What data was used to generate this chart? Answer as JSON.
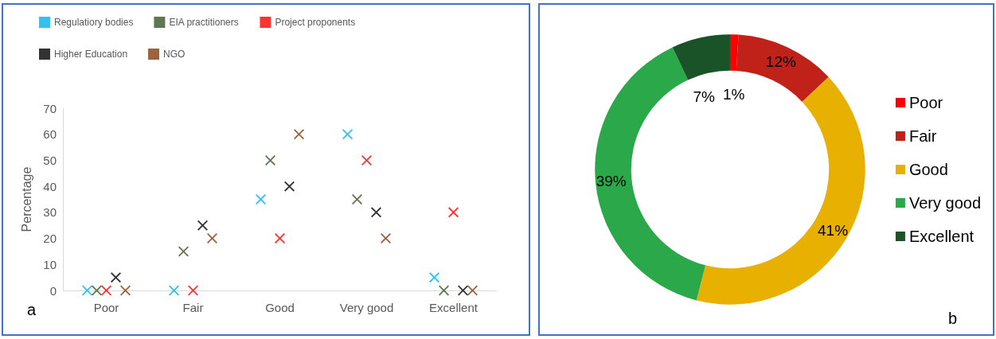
{
  "chart_data": [
    {
      "type": "scatter",
      "ylabel": "Percentage",
      "categories": [
        "Poor",
        "Fair",
        "Good",
        "Very good",
        "Excellent"
      ],
      "ylim": [
        0,
        70
      ],
      "yticks": [
        0,
        10,
        20,
        30,
        40,
        50,
        60,
        70
      ],
      "grid": false,
      "legend": "top",
      "marker": "cross",
      "annotations": [
        "a"
      ],
      "series": [
        {
          "name": "Regulatiory bodies",
          "color": "#00b0f0",
          "values": [
            0,
            0,
            35,
            60,
            5
          ]
        },
        {
          "name": "EIA practitioners",
          "color": "#375623",
          "values": [
            0,
            15,
            50,
            35,
            0
          ]
        },
        {
          "name": "Project proponents",
          "color": "#ff0000",
          "values": [
            0,
            0,
            20,
            50,
            30
          ]
        },
        {
          "name": "Higher Education",
          "color": "#000000",
          "values": [
            5,
            25,
            40,
            30,
            0
          ]
        },
        {
          "name": "NGO",
          "color": "#843c0c",
          "values": [
            0,
            20,
            60,
            20,
            0
          ]
        }
      ]
    },
    {
      "type": "donut",
      "categories": [
        "Poor",
        "Fair",
        "Good",
        "Very good",
        "Excellent"
      ],
      "values": [
        1,
        12,
        41,
        39,
        7
      ],
      "colors": [
        "#ff0000",
        "#c0221a",
        "#e8b000",
        "#2ba84a",
        "#1b5329"
      ],
      "value_labels": [
        "1%",
        "12%",
        "41%",
        "39%",
        "7%"
      ],
      "legend": "right",
      "annotations": [
        "b"
      ]
    }
  ]
}
